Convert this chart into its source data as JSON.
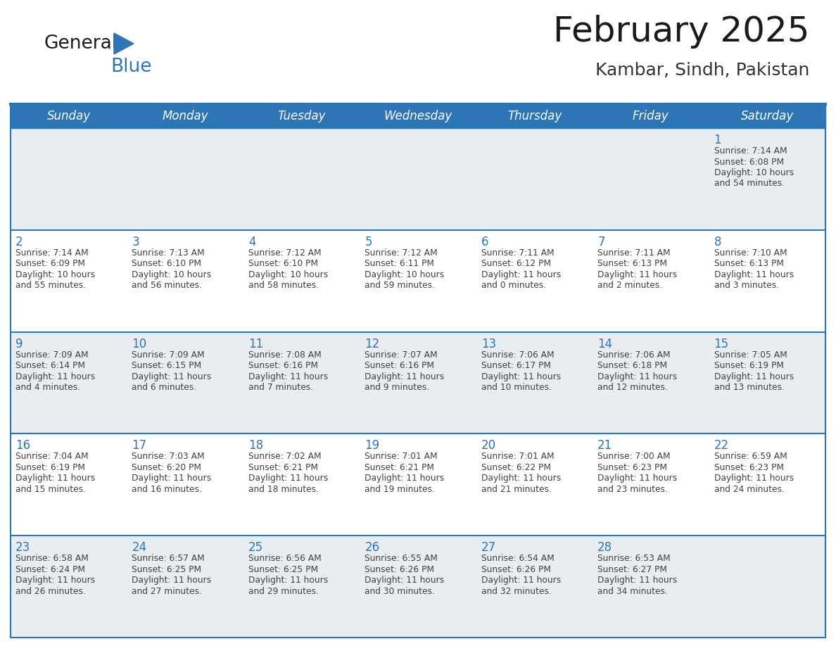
{
  "title": "February 2025",
  "subtitle": "Kambar, Sindh, Pakistan",
  "days_of_week": [
    "Sunday",
    "Monday",
    "Tuesday",
    "Wednesday",
    "Thursday",
    "Friday",
    "Saturday"
  ],
  "header_bg": "#2E75B6",
  "header_text_color": "#FFFFFF",
  "cell_bg_gray": "#E8EDF2",
  "cell_bg_white": "#FFFFFF",
  "grid_line_color": "#2E75B6",
  "day_number_color": "#2E75B6",
  "info_text_color": "#404040",
  "title_color": "#1a1a1a",
  "subtitle_color": "#333333",
  "logo_general_color": "#1a1a1a",
  "logo_blue_color": "#2E75B6",
  "weeks": [
    [
      {
        "day": null,
        "info": null
      },
      {
        "day": null,
        "info": null
      },
      {
        "day": null,
        "info": null
      },
      {
        "day": null,
        "info": null
      },
      {
        "day": null,
        "info": null
      },
      {
        "day": null,
        "info": null
      },
      {
        "day": 1,
        "info": "Sunrise: 7:14 AM\nSunset: 6:08 PM\nDaylight: 10 hours\nand 54 minutes."
      }
    ],
    [
      {
        "day": 2,
        "info": "Sunrise: 7:14 AM\nSunset: 6:09 PM\nDaylight: 10 hours\nand 55 minutes."
      },
      {
        "day": 3,
        "info": "Sunrise: 7:13 AM\nSunset: 6:10 PM\nDaylight: 10 hours\nand 56 minutes."
      },
      {
        "day": 4,
        "info": "Sunrise: 7:12 AM\nSunset: 6:10 PM\nDaylight: 10 hours\nand 58 minutes."
      },
      {
        "day": 5,
        "info": "Sunrise: 7:12 AM\nSunset: 6:11 PM\nDaylight: 10 hours\nand 59 minutes."
      },
      {
        "day": 6,
        "info": "Sunrise: 7:11 AM\nSunset: 6:12 PM\nDaylight: 11 hours\nand 0 minutes."
      },
      {
        "day": 7,
        "info": "Sunrise: 7:11 AM\nSunset: 6:13 PM\nDaylight: 11 hours\nand 2 minutes."
      },
      {
        "day": 8,
        "info": "Sunrise: 7:10 AM\nSunset: 6:13 PM\nDaylight: 11 hours\nand 3 minutes."
      }
    ],
    [
      {
        "day": 9,
        "info": "Sunrise: 7:09 AM\nSunset: 6:14 PM\nDaylight: 11 hours\nand 4 minutes."
      },
      {
        "day": 10,
        "info": "Sunrise: 7:09 AM\nSunset: 6:15 PM\nDaylight: 11 hours\nand 6 minutes."
      },
      {
        "day": 11,
        "info": "Sunrise: 7:08 AM\nSunset: 6:16 PM\nDaylight: 11 hours\nand 7 minutes."
      },
      {
        "day": 12,
        "info": "Sunrise: 7:07 AM\nSunset: 6:16 PM\nDaylight: 11 hours\nand 9 minutes."
      },
      {
        "day": 13,
        "info": "Sunrise: 7:06 AM\nSunset: 6:17 PM\nDaylight: 11 hours\nand 10 minutes."
      },
      {
        "day": 14,
        "info": "Sunrise: 7:06 AM\nSunset: 6:18 PM\nDaylight: 11 hours\nand 12 minutes."
      },
      {
        "day": 15,
        "info": "Sunrise: 7:05 AM\nSunset: 6:19 PM\nDaylight: 11 hours\nand 13 minutes."
      }
    ],
    [
      {
        "day": 16,
        "info": "Sunrise: 7:04 AM\nSunset: 6:19 PM\nDaylight: 11 hours\nand 15 minutes."
      },
      {
        "day": 17,
        "info": "Sunrise: 7:03 AM\nSunset: 6:20 PM\nDaylight: 11 hours\nand 16 minutes."
      },
      {
        "day": 18,
        "info": "Sunrise: 7:02 AM\nSunset: 6:21 PM\nDaylight: 11 hours\nand 18 minutes."
      },
      {
        "day": 19,
        "info": "Sunrise: 7:01 AM\nSunset: 6:21 PM\nDaylight: 11 hours\nand 19 minutes."
      },
      {
        "day": 20,
        "info": "Sunrise: 7:01 AM\nSunset: 6:22 PM\nDaylight: 11 hours\nand 21 minutes."
      },
      {
        "day": 21,
        "info": "Sunrise: 7:00 AM\nSunset: 6:23 PM\nDaylight: 11 hours\nand 23 minutes."
      },
      {
        "day": 22,
        "info": "Sunrise: 6:59 AM\nSunset: 6:23 PM\nDaylight: 11 hours\nand 24 minutes."
      }
    ],
    [
      {
        "day": 23,
        "info": "Sunrise: 6:58 AM\nSunset: 6:24 PM\nDaylight: 11 hours\nand 26 minutes."
      },
      {
        "day": 24,
        "info": "Sunrise: 6:57 AM\nSunset: 6:25 PM\nDaylight: 11 hours\nand 27 minutes."
      },
      {
        "day": 25,
        "info": "Sunrise: 6:56 AM\nSunset: 6:25 PM\nDaylight: 11 hours\nand 29 minutes."
      },
      {
        "day": 26,
        "info": "Sunrise: 6:55 AM\nSunset: 6:26 PM\nDaylight: 11 hours\nand 30 minutes."
      },
      {
        "day": 27,
        "info": "Sunrise: 6:54 AM\nSunset: 6:26 PM\nDaylight: 11 hours\nand 32 minutes."
      },
      {
        "day": 28,
        "info": "Sunrise: 6:53 AM\nSunset: 6:27 PM\nDaylight: 11 hours\nand 34 minutes."
      },
      {
        "day": null,
        "info": null
      }
    ]
  ],
  "row_bg_colors": [
    "#E8EDF2",
    "#FFFFFF",
    "#E8EDF2",
    "#FFFFFF",
    "#E8EDF2"
  ]
}
